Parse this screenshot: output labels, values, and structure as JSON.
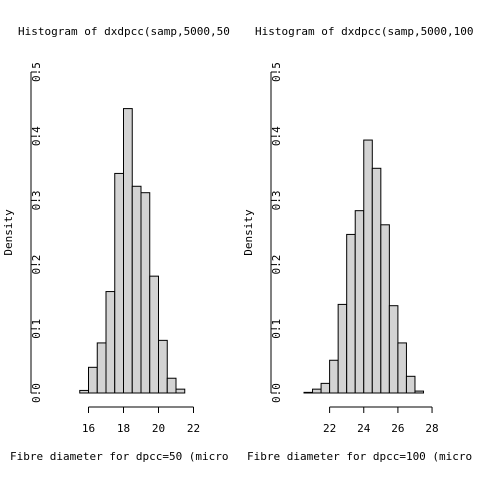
{
  "chart_data": [
    {
      "type": "bar",
      "title": "Histogram of dxdpcc(samp,5000,50",
      "xlabel": "Fibre diameter for dpcc=50 (micro",
      "ylabel": "Density",
      "xlim": [
        14.6,
        22.6
      ],
      "ylim": [
        0,
        0.5
      ],
      "x_ticks": [
        16,
        18,
        20,
        22
      ],
      "y_ticks": [
        0.0,
        0.1,
        0.2,
        0.3,
        0.4,
        0.5
      ],
      "y_tick_labels": [
        "0.0",
        "0.1",
        "0.2",
        "0.3",
        "0.4",
        "0.5"
      ],
      "bin_width": 0.5,
      "bins_start": [
        15.5,
        16.0,
        16.5,
        17.0,
        17.5,
        18.0,
        18.5,
        19.0,
        19.5,
        20.0,
        20.5,
        21.0
      ],
      "values": [
        0.004,
        0.04,
        0.078,
        0.158,
        0.342,
        0.443,
        0.322,
        0.312,
        0.182,
        0.082,
        0.023,
        0.006
      ]
    },
    {
      "type": "bar",
      "title": "Histogram of dxdpcc(samp,5000,100",
      "xlabel": "Fibre diameter for dpcc=100 (micro",
      "ylabel": "Density",
      "xlim": [
        20.5,
        28.7
      ],
      "ylim": [
        0,
        0.5
      ],
      "x_ticks": [
        22,
        24,
        26,
        28
      ],
      "y_ticks": [
        0.0,
        0.1,
        0.2,
        0.3,
        0.4,
        0.5
      ],
      "y_tick_labels": [
        "0.0",
        "0.1",
        "0.2",
        "0.3",
        "0.4",
        "0.5"
      ],
      "bin_width": 0.5,
      "bins_start": [
        20.5,
        21.0,
        21.5,
        22.0,
        22.5,
        23.0,
        23.5,
        24.0,
        24.5,
        25.0,
        25.5,
        26.0,
        26.5,
        27.0
      ],
      "values": [
        0.001,
        0.006,
        0.015,
        0.051,
        0.138,
        0.247,
        0.284,
        0.394,
        0.35,
        0.262,
        0.136,
        0.078,
        0.026,
        0.003
      ]
    }
  ]
}
